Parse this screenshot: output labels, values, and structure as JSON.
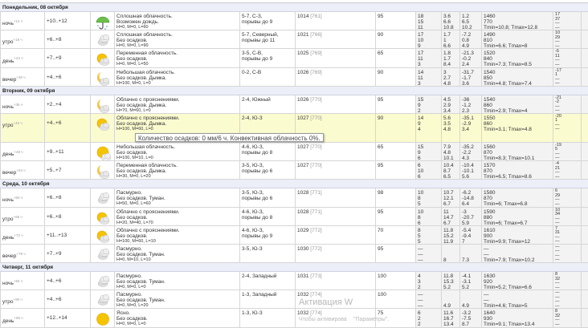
{
  "days": [
    {
      "title": "Понедельник, 08 октября",
      "rows": [
        {
          "period": "ночь",
          "offset": "+12 ч",
          "temp": "+10..+12",
          "icon": "rain-umbrella-icon",
          "d1": "Сплошная облачность.",
          "d2": "Возможен дождь.",
          "hml": "H=0, M=0, L=60",
          "w1": "5-7, С-З,",
          "w2": "порывы до 9",
          "p": "1014",
          "pmm": "[761]",
          "h": "95",
          "c1": [
            "18",
            "15",
            "11"
          ],
          "c2": [
            "3.6",
            "6.6",
            "10.8"
          ],
          "c3": [
            "1.2",
            "6.5",
            "10.2"
          ],
          "c4": [
            "1460",
            "770",
            "Tmin=10.8; Tmax=12.8"
          ],
          "c5": [
            "17",
            "37",
            "—",
            "—"
          ]
        },
        {
          "period": "утро",
          "offset": "+18 ч",
          "temp": "+6..+8",
          "icon": "overcast-cloud-icon",
          "d1": "Сплошная облачность.",
          "d2": "Без осадков.",
          "hml": "H=0, M=0, L=90",
          "w1": "5-7, Северный,",
          "w2": "порывы до 11",
          "p": "1021",
          "pmm": "[766]",
          "h": "90",
          "c1": [
            "17",
            "10",
            "9"
          ],
          "c2": [
            "1.7",
            "1",
            "6.6"
          ],
          "c3": [
            "-7.2",
            "0.8",
            "4.9"
          ],
          "c4": [
            "1490",
            "810",
            "Tmin=6.6; Tmax=8"
          ],
          "c5": [
            "10",
            "29",
            "—",
            "—"
          ]
        },
        {
          "period": "день",
          "offset": "+24 ч",
          "temp": "+7..+9",
          "icon": "sun-cloud-icon",
          "d1": "Переменная облачность.",
          "d2": "Без осадков.",
          "hml": "H=0, M=0, L=50",
          "w1": "3-5, С-В,",
          "w2": "порывы до 9",
          "p": "1025",
          "pmm": "[769]",
          "h": "65",
          "c1": [
            "17",
            "11",
            "3"
          ],
          "c2": [
            "1.8",
            "1.7",
            "8.4"
          ],
          "c3": [
            "-21.3",
            "-0.2",
            "2.4"
          ],
          "c4": [
            "1520",
            "840",
            "Tmin=7.3; Tmax=8.5"
          ],
          "c5": [
            "-6",
            "11",
            "—",
            "—"
          ]
        },
        {
          "period": "вечер",
          "offset": "+30 ч",
          "temp": "+4..+6",
          "icon": "moon-cloud-icon",
          "d1": "Небольшая облачность.",
          "d2": "Без осадков. Дымка.",
          "hml": "H=100, M=0, L=0",
          "w1": "0-2, С-В",
          "w2": "",
          "p": "1026",
          "pmm": "[769]",
          "h": "90",
          "c1": [
            "14",
            "11",
            "3"
          ],
          "c2": [
            "3",
            "2.7",
            "4.8"
          ],
          "c3": [
            "-31.7",
            "-1.7",
            "3.6"
          ],
          "c4": [
            "1540",
            "850",
            "Tmin=4.8; Tmax=7.4"
          ],
          "c5": [
            "-17",
            "1",
            "—",
            "—"
          ]
        }
      ]
    },
    {
      "title": "Вторник, 09 октября",
      "rows": [
        {
          "period": "ночь",
          "offset": "+36 ч",
          "temp": "+2..+4",
          "icon": "moon-cloud-icon",
          "d1": "Облачно с прояснениями.",
          "d2": "Без осадков. Дымка.",
          "hml": "H=70, M=60, L=0",
          "w1": "2-4, Южный",
          "w2": "",
          "p": "1026",
          "pmm": "[770]",
          "h": "95",
          "c1": [
            "15",
            "9",
            "2"
          ],
          "c2": [
            "4.5",
            "2.9",
            "3.4"
          ],
          "c3": [
            "-36",
            "-1.2",
            "2.3"
          ],
          "c4": [
            "1540",
            "860",
            "Tmin=2.9; Tmax=4"
          ],
          "c5": [
            "-21",
            "-2",
            "—",
            "—"
          ]
        },
        {
          "period": "утро",
          "offset": "+42 ч",
          "temp": "+4..+6",
          "icon": "sun-cloud-icon",
          "d1": "Облачно с прояснениями.",
          "d2": "Без осадков. Дымка.",
          "hml": "H=100, M=60, L=0",
          "w1": "2-4, Ю-З",
          "w2": "",
          "p": "1027",
          "pmm": "[770]",
          "h": "90",
          "c1": [
            "14",
            "9",
            "4"
          ],
          "c2": [
            "5.6",
            "3.5",
            "4.8"
          ],
          "c3": [
            "-35.1",
            "-2.9",
            "3.4"
          ],
          "c4": [
            "1550",
            "860",
            "Tmin=3.1; Tmax=4.8"
          ],
          "c5": [
            "-20",
            "1",
            "—",
            "—"
          ],
          "highlight": true
        },
        {
          "period": "день",
          "offset": "+48 ч",
          "temp": "+9..+11",
          "icon": "sun-small-cloud-icon",
          "d1": "Небольшая облачность.",
          "d2": "Без осадков.",
          "hml": "H=100, M=10, L=0",
          "w1": "4-6, Ю-З,",
          "w2": "порывы до 8",
          "p": "1027",
          "pmm": "[770]",
          "h": "65",
          "c1": [
            "15",
            "9",
            "6"
          ],
          "c2": [
            "7.9",
            "4.8",
            "10.1"
          ],
          "c3": [
            "-35.2",
            "-2.2",
            "4.3"
          ],
          "c4": [
            "1560",
            "870",
            "Tmin=8.3; Tmax=10.1"
          ],
          "c5": [
            "-19",
            "5",
            "—",
            "—"
          ]
        },
        {
          "period": "вечер",
          "offset": "+54 ч",
          "temp": "+5..+7",
          "icon": "moon-cloud-icon",
          "d1": "Переменная облачность.",
          "d2": "Без осадков. Дымка.",
          "hml": "H=30, M=0, L=20",
          "w1": "3-5, Ю-З,",
          "w2": "порывы до 6",
          "p": "1027",
          "pmm": "[770]",
          "h": "95",
          "c1": [
            "6",
            "10",
            "6"
          ],
          "c2": [
            "10.4",
            "8.7",
            "6.5"
          ],
          "c3": [
            "-10.4",
            "-10.1",
            "5.6"
          ],
          "c4": [
            "1570",
            "870",
            "Tmin=6.5; Tmax=8.6"
          ],
          "c5": [
            "-4",
            "21",
            "—",
            "—"
          ]
        }
      ]
    },
    {
      "title": "Среда, 10 октября",
      "rows": [
        {
          "period": "ночь",
          "offset": "+60 ч",
          "temp": "+6..+8",
          "icon": "overcast-cloud-icon",
          "d1": "Пасмурно.",
          "d2": "Без осадков. Туман.",
          "hml": "H=50, M=0, L=60",
          "w1": "3-5, Ю-З,",
          "w2": "порывы до 6",
          "p": "1028",
          "pmm": "[771]",
          "h": "98",
          "c1": [
            "10",
            "8",
            "5"
          ],
          "c2": [
            "10.7",
            "12.1",
            "6.7"
          ],
          "c3": [
            "-6.2",
            "-14.8",
            "6.4"
          ],
          "c4": [
            "1580",
            "870",
            "Tmin=6; Tmax=6.8"
          ],
          "c5": [
            "6",
            "29",
            "—",
            "—"
          ]
        },
        {
          "period": "утро",
          "offset": "+66 ч",
          "temp": "+6..+8",
          "icon": "sun-cloud-icon",
          "d1": "Облачно с прояснениями.",
          "d2": "Без осадков.",
          "hml": "H=20, M=40, L=70",
          "w1": "4-6, Ю-З,",
          "w2": "порывы до 8",
          "p": "1028",
          "pmm": "[771]",
          "h": "95",
          "c1": [
            "10",
            "8",
            "6"
          ],
          "c2": [
            "11",
            "14.7",
            "6.7"
          ],
          "c3": [
            "-3",
            "-20.7",
            "5.9"
          ],
          "c4": [
            "1590",
            "880",
            "Tmin=6; Tmax=6.7"
          ],
          "c5": [
            "10",
            "34",
            "—",
            "—"
          ]
        },
        {
          "period": "день",
          "offset": "+72 ч",
          "temp": "+11..+13",
          "icon": "sun-cloud-icon",
          "d1": "Облачно с прояснениями.",
          "d2": "Без осадков.",
          "hml": "H=100, M=60, L=10",
          "w1": "4-6, Ю-З,",
          "w2": "порывы до 9",
          "p": "1029",
          "pmm": "[772]",
          "h": "70",
          "c1": [
            "8",
            "5",
            "5"
          ],
          "c2": [
            "11.8",
            "15.2",
            "11.9"
          ],
          "c3": [
            "-5.4",
            "-9.4",
            "7"
          ],
          "c4": [
            "1610",
            "900",
            "Tmin=9.9; Tmax=12"
          ],
          "c5": [
            "7",
            "31",
            "—",
            "—"
          ]
        },
        {
          "period": "вечер",
          "offset": "+78 ч",
          "temp": "+7..+9",
          "icon": "overcast-cloud-icon",
          "d1": "Пасмурно.",
          "d2": "Без осадков. Туман.",
          "hml": "H=0, M=10, L=10",
          "w1": "3-5, Ю-З",
          "w2": "",
          "p": "1030",
          "pmm": "[772]",
          "h": "95",
          "c1": [
            "—",
            "—",
            "—"
          ],
          "c2": [
            "",
            "",
            "8"
          ],
          "c3": [
            "",
            "",
            "7.3"
          ],
          "c4": [
            "—",
            "—",
            "Tmin=7.9; Tmax=10.2"
          ],
          "c5": [
            "—",
            "—",
            "—",
            "—"
          ]
        }
      ]
    },
    {
      "title": "Четверг, 11 октября",
      "rows": [
        {
          "period": "ночь",
          "offset": "+84 ч",
          "temp": "+4..+6",
          "icon": "overcast-cloud-icon",
          "d1": "Пасмурно.",
          "d2": "Без осадков. Туман.",
          "hml": "H=0, M=0, L=0",
          "w1": "2-4, Западный",
          "w2": "",
          "p": "1031",
          "pmm": "[773]",
          "h": "100",
          "c1": [
            "4",
            "3",
            "2"
          ],
          "c2": [
            "11.8",
            "15.3",
            "5.2"
          ],
          "c3": [
            "-4.1",
            "-3.1",
            "5.2"
          ],
          "c4": [
            "1630",
            "920",
            "Tmin=5.2; Tmax=6.6"
          ],
          "c5": [
            "8",
            "32",
            "—",
            "—"
          ]
        },
        {
          "period": "утро",
          "offset": "+90 ч",
          "temp": "+4..+6",
          "icon": "overcast-cloud-icon",
          "d1": "Пасмурно.",
          "d2": "Без осадков. Туман.",
          "hml": "H=0, M=0, L=20",
          "w1": "1-3, Западный",
          "w2": "",
          "p": "1032",
          "pmm": "[774]",
          "h": "100",
          "c1": [
            "—",
            "—",
            "—"
          ],
          "c2": [
            "",
            "",
            "4.9"
          ],
          "c3": [
            "",
            "",
            "4.9"
          ],
          "c4": [
            "—",
            "—",
            "Tmin=4.6; Tmax=5"
          ],
          "c5": [
            "—",
            "—",
            "—",
            "—"
          ]
        },
        {
          "period": "день",
          "offset": "+96 ч",
          "temp": "+12..+14",
          "icon": "sun-icon",
          "d1": "Ясно.",
          "d2": "Без осадков.",
          "hml": "H=0, M=0, L=0",
          "w1": "1-3, Ю-З",
          "w2": "",
          "p": "1032",
          "pmm": "[774]",
          "h": "75",
          "c1": [
            "6",
            "2",
            "2"
          ],
          "c2": [
            "11.6",
            "16.7",
            "13.4"
          ],
          "c3": [
            "-3.2",
            "-7.5",
            "8.7"
          ],
          "c4": [
            "1640",
            "930",
            "Tmin=9.1; Tmax=13.4"
          ],
          "c5": [
            "8",
            "32",
            "—",
            "—"
          ]
        }
      ]
    }
  ],
  "tooltip": "Количество осадков: 0 мм/6 ч. Конвективная облачность 0%.",
  "watermark": {
    "title": "Активация W",
    "line1": "Чтобы активирова",
    "line2": "\"Параметры\"."
  }
}
